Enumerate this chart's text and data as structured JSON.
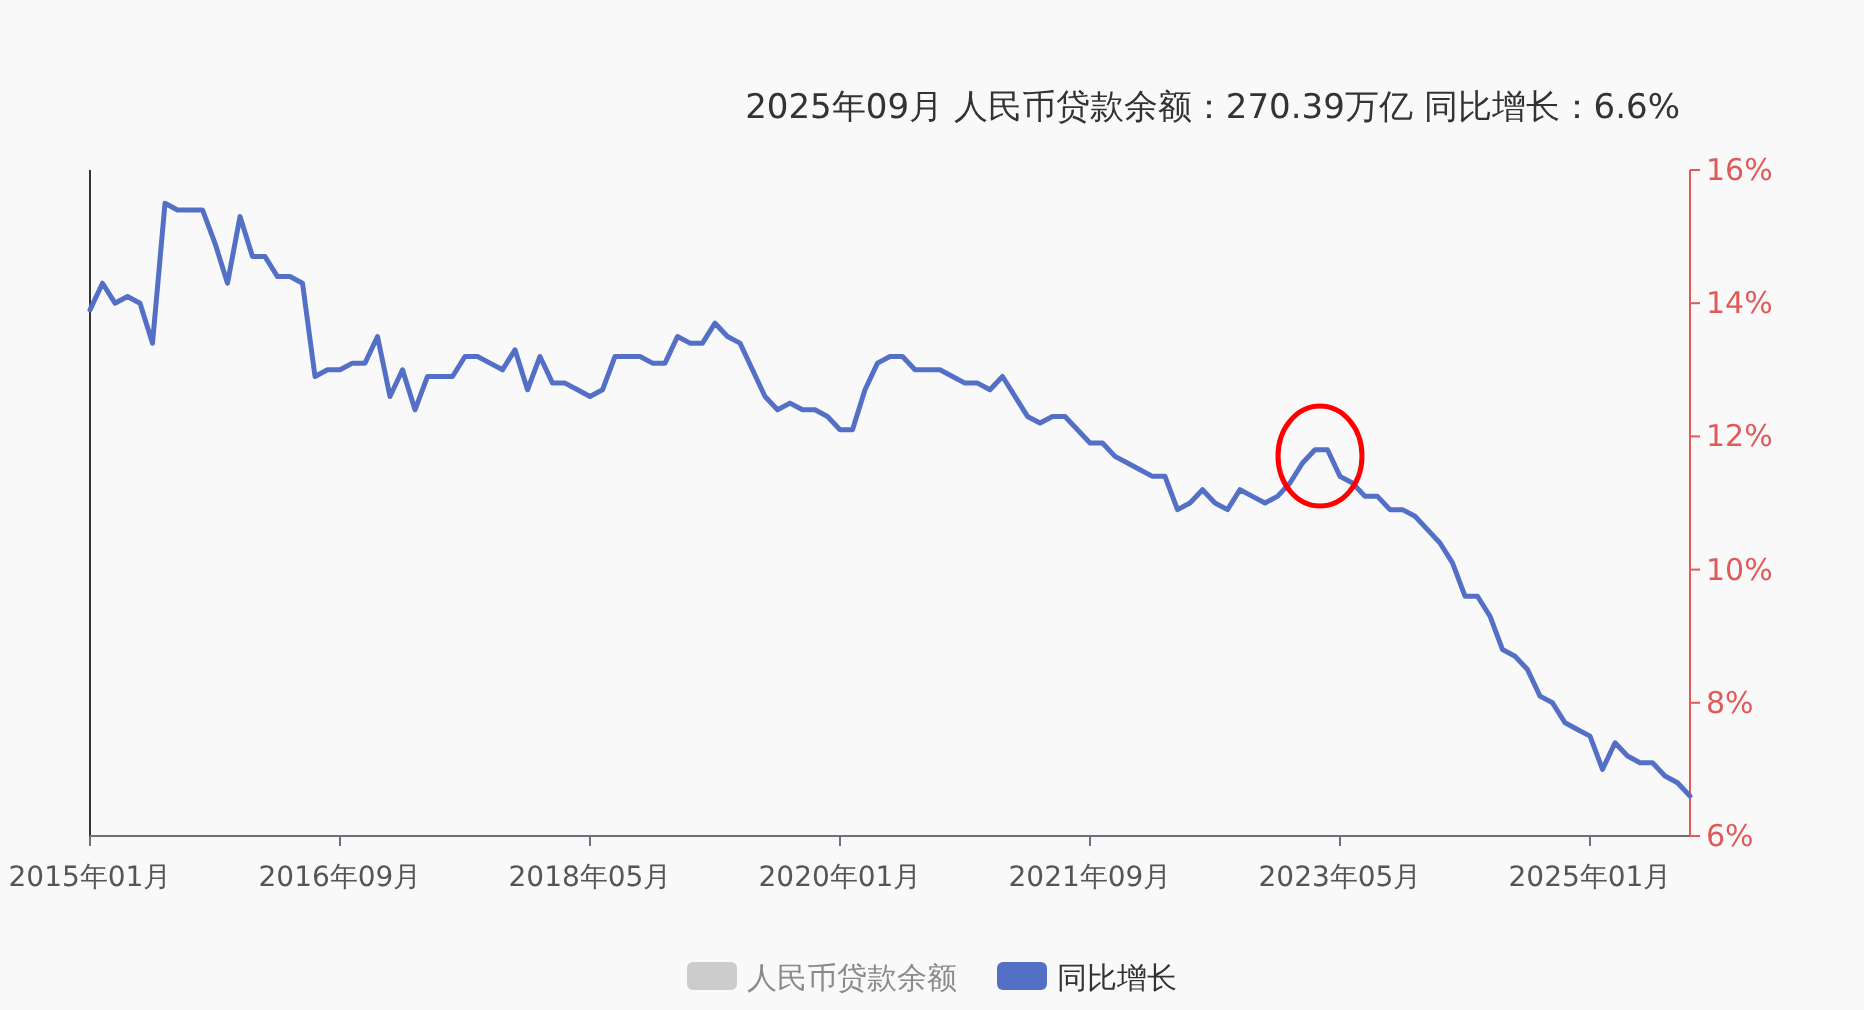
{
  "chart_data": {
    "type": "line",
    "title": "2025年09月 人民币贷款余额：270.39万亿 同比增长：6.6%",
    "x": [
      "2015-01",
      "2015-02",
      "2015-03",
      "2015-04",
      "2015-05",
      "2015-06",
      "2015-07",
      "2015-08",
      "2015-09",
      "2015-10",
      "2015-11",
      "2015-12",
      "2016-01",
      "2016-02",
      "2016-03",
      "2016-04",
      "2016-05",
      "2016-06",
      "2016-07",
      "2016-08",
      "2016-09",
      "2016-10",
      "2016-11",
      "2016-12",
      "2017-01",
      "2017-02",
      "2017-03",
      "2017-04",
      "2017-05",
      "2017-06",
      "2017-07",
      "2017-08",
      "2017-09",
      "2017-10",
      "2017-11",
      "2017-12",
      "2018-01",
      "2018-02",
      "2018-03",
      "2018-04",
      "2018-05",
      "2018-06",
      "2018-07",
      "2018-08",
      "2018-09",
      "2018-10",
      "2018-11",
      "2018-12",
      "2019-01",
      "2019-02",
      "2019-03",
      "2019-04",
      "2019-05",
      "2019-06",
      "2019-07",
      "2019-08",
      "2019-09",
      "2019-10",
      "2019-11",
      "2019-12",
      "2020-01",
      "2020-02",
      "2020-03",
      "2020-04",
      "2020-05",
      "2020-06",
      "2020-07",
      "2020-08",
      "2020-09",
      "2020-10",
      "2020-11",
      "2020-12",
      "2021-01",
      "2021-02",
      "2021-03",
      "2021-04",
      "2021-05",
      "2021-06",
      "2021-07",
      "2021-08",
      "2021-09",
      "2021-10",
      "2021-11",
      "2021-12",
      "2022-01",
      "2022-02",
      "2022-03",
      "2022-04",
      "2022-05",
      "2022-06",
      "2022-07",
      "2022-08",
      "2022-09",
      "2022-10",
      "2022-11",
      "2022-12",
      "2023-01",
      "2023-02",
      "2023-03",
      "2023-04",
      "2023-05",
      "2023-06",
      "2023-07",
      "2023-08",
      "2023-09",
      "2023-10",
      "2023-11",
      "2023-12",
      "2024-01",
      "2024-02",
      "2024-03",
      "2024-04",
      "2024-05",
      "2024-06",
      "2024-07",
      "2024-08",
      "2024-09",
      "2024-10",
      "2024-11",
      "2024-12",
      "2025-01",
      "2025-02",
      "2025-03",
      "2025-04",
      "2025-05",
      "2025-06",
      "2025-07",
      "2025-08",
      "2025-09"
    ],
    "series": [
      {
        "name": "人民币贷款余额",
        "color": "#cccccc",
        "values": [
          null,
          null,
          null,
          null,
          null,
          null,
          null,
          null,
          null,
          null,
          null,
          null,
          null,
          null,
          null,
          null,
          null,
          null,
          null,
          null,
          null,
          null,
          null,
          null,
          null,
          null,
          null,
          null,
          null,
          null,
          null,
          null,
          null,
          null,
          null,
          null,
          null,
          null,
          null,
          null,
          null,
          null,
          null,
          null,
          null,
          null,
          null,
          null,
          null,
          null,
          null,
          null,
          null,
          null,
          null,
          null,
          null,
          null,
          null,
          null,
          null,
          null,
          null,
          null,
          null,
          null,
          null,
          null,
          null,
          null,
          null,
          null,
          null,
          null,
          null,
          null,
          null,
          null,
          null,
          null,
          null,
          null,
          null,
          null,
          null,
          null,
          null,
          null,
          null,
          null,
          null,
          null,
          null,
          null,
          null,
          null,
          null,
          null,
          null,
          null,
          null,
          null,
          null,
          null,
          null,
          null,
          null,
          null,
          null,
          null,
          null,
          null,
          null,
          null,
          null,
          null,
          null,
          null,
          null,
          null,
          null,
          null,
          null,
          null,
          null,
          null,
          null,
          null,
          null
        ]
      },
      {
        "name": "同比增长",
        "color": "#5470c6",
        "values": [
          13.9,
          14.3,
          14.0,
          14.1,
          14.0,
          13.4,
          15.5,
          15.4,
          15.4,
          15.4,
          14.9,
          14.3,
          15.3,
          14.7,
          14.7,
          14.4,
          14.4,
          14.3,
          12.9,
          13.0,
          13.0,
          13.1,
          13.1,
          13.5,
          12.6,
          13.0,
          12.4,
          12.9,
          12.9,
          12.9,
          13.2,
          13.2,
          13.1,
          13.0,
          13.3,
          12.7,
          13.2,
          12.8,
          12.8,
          12.7,
          12.6,
          12.7,
          13.2,
          13.2,
          13.2,
          13.1,
          13.1,
          13.5,
          13.4,
          13.4,
          13.7,
          13.5,
          13.4,
          13.0,
          12.6,
          12.4,
          12.5,
          12.4,
          12.4,
          12.3,
          12.1,
          12.1,
          12.7,
          13.1,
          13.2,
          13.2,
          13.0,
          13.0,
          13.0,
          12.9,
          12.8,
          12.8,
          12.7,
          12.9,
          12.6,
          12.3,
          12.2,
          12.3,
          12.3,
          12.1,
          11.9,
          11.9,
          11.7,
          11.6,
          11.5,
          11.4,
          11.4,
          10.9,
          11.0,
          11.2,
          11.0,
          10.9,
          11.2,
          11.1,
          11.0,
          11.1,
          11.3,
          11.6,
          11.8,
          11.8,
          11.4,
          11.3,
          11.1,
          11.1,
          10.9,
          10.9,
          10.8,
          10.6,
          10.4,
          10.1,
          9.6,
          9.6,
          9.3,
          8.8,
          8.7,
          8.5,
          8.1,
          8.0,
          7.7,
          7.6,
          7.5,
          7.0,
          7.4,
          7.2,
          7.1,
          7.1,
          6.9,
          6.8,
          6.6
        ]
      }
    ],
    "xlim": [
      "2015-01",
      "2025-09"
    ],
    "xticks": [
      {
        "value": "2015-01",
        "label": "2015年01月"
      },
      {
        "value": "2016-09",
        "label": "2016年09月"
      },
      {
        "value": "2018-05",
        "label": "2018年05月"
      },
      {
        "value": "2020-01",
        "label": "2020年01月"
      },
      {
        "value": "2021-09",
        "label": "2021年09月"
      },
      {
        "value": "2023-05",
        "label": "2023年05月"
      },
      {
        "value": "2025-01",
        "label": "2025年01月"
      }
    ],
    "ylim": [
      6,
      16
    ],
    "yticks": [
      {
        "value": 6,
        "label": "6%"
      },
      {
        "value": 8,
        "label": "8%"
      },
      {
        "value": 10,
        "label": "10%"
      },
      {
        "value": 12,
        "label": "12%"
      },
      {
        "value": 14,
        "label": "14%"
      },
      {
        "value": 16,
        "label": "16%"
      }
    ],
    "legend": "bottom",
    "marker": "none",
    "line_style": "solid",
    "grid": false
  }
}
